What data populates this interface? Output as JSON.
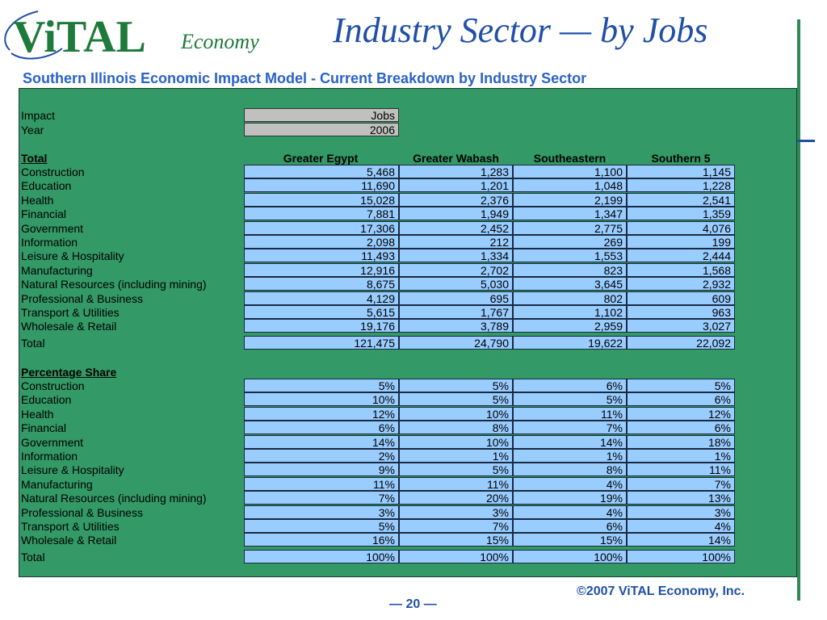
{
  "header": {
    "logo_main": "ViTAL",
    "logo_sub": "Economy",
    "title": "Industry Sector — by Jobs",
    "subtitle": "Southern Illinois Economic Impact Model - Current Breakdown by Industry Sector"
  },
  "params": [
    {
      "label": "Impact",
      "value": "Jobs"
    },
    {
      "label": "Year",
      "value": "2006"
    }
  ],
  "columns": [
    "Greater Egypt",
    "Greater Wabash",
    "Southeastern",
    "Southern 5"
  ],
  "total_section": {
    "heading": "Total",
    "rows": [
      {
        "label": "Construction",
        "values": [
          "5,468",
          "1,283",
          "1,100",
          "1,145"
        ]
      },
      {
        "label": "Education",
        "values": [
          "11,690",
          "1,201",
          "1,048",
          "1,228"
        ]
      },
      {
        "label": "Health",
        "values": [
          "15,028",
          "2,376",
          "2,199",
          "2,541"
        ]
      },
      {
        "label": "Financial",
        "values": [
          "7,881",
          "1,949",
          "1,347",
          "1,359"
        ]
      },
      {
        "label": "Government",
        "values": [
          "17,306",
          "2,452",
          "2,775",
          "4,076"
        ]
      },
      {
        "label": "Information",
        "values": [
          "2,098",
          "212",
          "269",
          "199"
        ]
      },
      {
        "label": "Leisure & Hospitality",
        "values": [
          "11,493",
          "1,334",
          "1,553",
          "2,444"
        ]
      },
      {
        "label": "Manufacturing",
        "values": [
          "12,916",
          "2,702",
          "823",
          "1,568"
        ]
      },
      {
        "label": "Natural Resources (including mining)",
        "values": [
          "8,675",
          "5,030",
          "3,645",
          "2,932"
        ]
      },
      {
        "label": "Professional & Business",
        "values": [
          "4,129",
          "695",
          "802",
          "609"
        ]
      },
      {
        "label": "Transport & Utilities",
        "values": [
          "5,615",
          "1,767",
          "1,102",
          "963"
        ]
      },
      {
        "label": "Wholesale & Retail",
        "values": [
          "19,176",
          "3,789",
          "2,959",
          "3,027"
        ]
      }
    ],
    "total": {
      "label": "Total",
      "values": [
        "121,475",
        "24,790",
        "19,622",
        "22,092"
      ]
    }
  },
  "share_section": {
    "heading": "Percentage Share",
    "rows": [
      {
        "label": "Construction",
        "values": [
          "5%",
          "5%",
          "6%",
          "5%"
        ]
      },
      {
        "label": "Education",
        "values": [
          "10%",
          "5%",
          "5%",
          "6%"
        ]
      },
      {
        "label": "Health",
        "values": [
          "12%",
          "10%",
          "11%",
          "12%"
        ]
      },
      {
        "label": "Financial",
        "values": [
          "6%",
          "8%",
          "7%",
          "6%"
        ]
      },
      {
        "label": "Government",
        "values": [
          "14%",
          "10%",
          "14%",
          "18%"
        ]
      },
      {
        "label": "Information",
        "values": [
          "2%",
          "1%",
          "1%",
          "1%"
        ]
      },
      {
        "label": "Leisure & Hospitality",
        "values": [
          "9%",
          "5%",
          "8%",
          "11%"
        ]
      },
      {
        "label": "Manufacturing",
        "values": [
          "11%",
          "11%",
          "4%",
          "7%"
        ]
      },
      {
        "label": "Natural Resources (including mining)",
        "values": [
          "7%",
          "20%",
          "19%",
          "13%"
        ]
      },
      {
        "label": "Professional & Business",
        "values": [
          "3%",
          "3%",
          "4%",
          "3%"
        ]
      },
      {
        "label": "Transport & Utilities",
        "values": [
          "5%",
          "7%",
          "6%",
          "4%"
        ]
      },
      {
        "label": "Wholesale & Retail",
        "values": [
          "16%",
          "15%",
          "15%",
          "14%"
        ]
      }
    ],
    "total": {
      "label": "Total",
      "values": [
        "100%",
        "100%",
        "100%",
        "100%"
      ]
    }
  },
  "footer": {
    "copyright": "©2007 ViTAL Economy, Inc.",
    "page": "— 20 —"
  },
  "colors": {
    "panel": "#339966",
    "cell_blue": "#99ccff",
    "cell_grey": "#c0c0c0",
    "title_blue": "#1f4fa8",
    "logo_green": "#1e7a3a"
  }
}
